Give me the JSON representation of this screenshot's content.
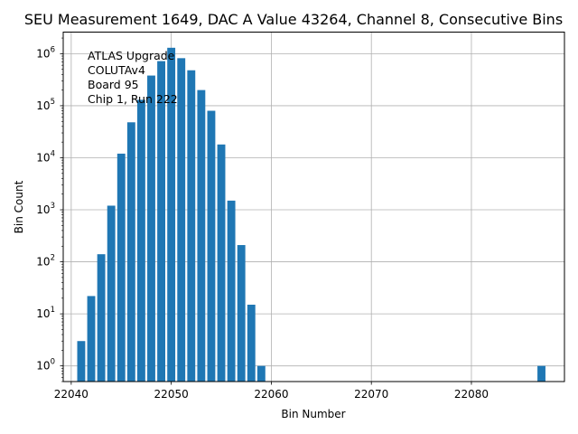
{
  "chart_data": {
    "type": "bar",
    "title": "SEU Measurement 1649, DAC A Value 43264, Channel 8, Consecutive Bins",
    "xlabel": "Bin Number",
    "ylabel": "Bin Count",
    "yscale": "log",
    "grid": true,
    "xlim": [
      22039.2,
      22089.3
    ],
    "ylim": [
      0.5,
      2600000
    ],
    "xticks": [
      22040,
      22050,
      22060,
      22070,
      22080
    ],
    "xtick_labels": [
      "22040",
      "22050",
      "22060",
      "22070",
      "22080"
    ],
    "yticks": [
      1,
      10,
      100,
      1000,
      10000,
      100000,
      1000000
    ],
    "ytick_labels": [
      {
        "base": "10",
        "exp": "0"
      },
      {
        "base": "10",
        "exp": "1"
      },
      {
        "base": "10",
        "exp": "2"
      },
      {
        "base": "10",
        "exp": "3"
      },
      {
        "base": "10",
        "exp": "4"
      },
      {
        "base": "10",
        "exp": "5"
      },
      {
        "base": "10",
        "exp": "6"
      }
    ],
    "bar_color": "#1f77b4",
    "x": [
      22041,
      22042,
      22043,
      22044,
      22045,
      22046,
      22047,
      22048,
      22049,
      22050,
      22051,
      22052,
      22053,
      22054,
      22055,
      22056,
      22057,
      22058,
      22059,
      22087
    ],
    "values": [
      3,
      22,
      140,
      1200,
      12000,
      48000,
      130000,
      380000,
      720000,
      1300000,
      820000,
      480000,
      200000,
      80000,
      18000,
      1500,
      210,
      15,
      1,
      1
    ],
    "annotation": [
      "ATLAS Upgrade",
      "COLUTAv4",
      " Board 95",
      "Chip 1, Run 222"
    ]
  }
}
